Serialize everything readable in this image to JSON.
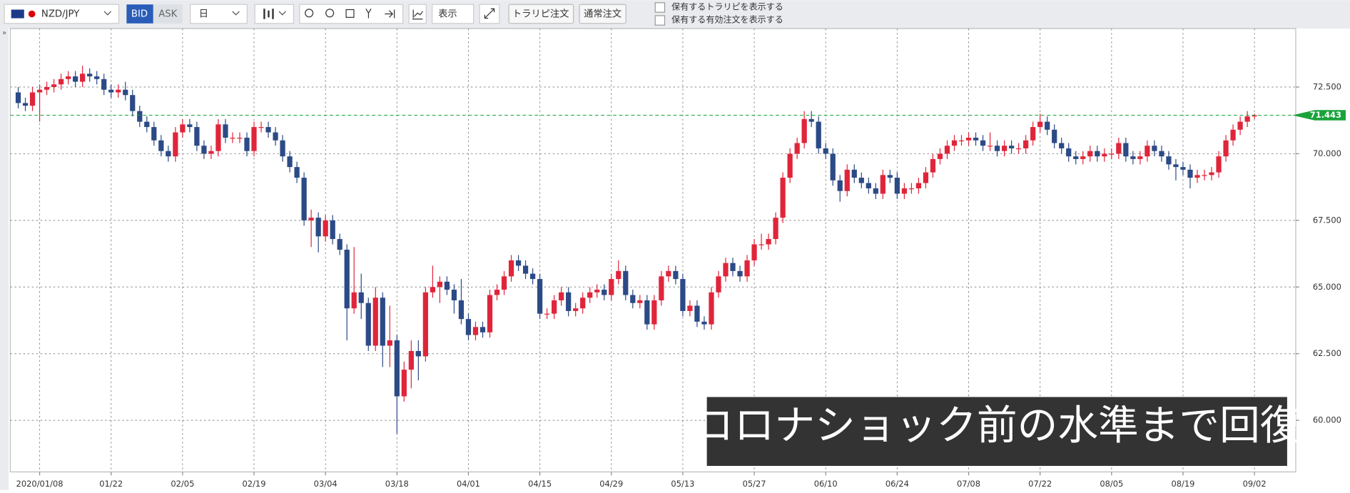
{
  "toolbar": {
    "pair": "NZD/JPY",
    "bid": "BID",
    "ask": "ASK",
    "period": "日",
    "display": "表示",
    "trap_order": "トラリピ注文",
    "normal_order": "通常注文",
    "show_trap": "保有するトラリピを表示する",
    "show_orders": "保有する有効注文を表示する"
  },
  "chart_data": {
    "type": "candlestick",
    "annotation": "コロナショック前の水準まで回復",
    "categories": [
      null,
      null,
      null,
      "2020/01/08",
      null,
      null,
      null,
      null,
      null,
      null,
      null,
      null,
      null,
      "01/22",
      null,
      null,
      null,
      null,
      null,
      null,
      null,
      null,
      null,
      "02/05",
      null,
      null,
      null,
      null,
      null,
      null,
      null,
      null,
      null,
      "02/19",
      null,
      null,
      null,
      null,
      null,
      null,
      null,
      null,
      null,
      "03/04",
      null,
      null,
      null,
      null,
      null,
      null,
      null,
      null,
      null,
      "03/18",
      null,
      null,
      null,
      null,
      null,
      null,
      null,
      null,
      null,
      "04/01",
      null,
      null,
      null,
      null,
      null,
      null,
      null,
      null,
      null,
      "04/15",
      null,
      null,
      null,
      null,
      null,
      null,
      null,
      null,
      null,
      "04/29",
      null,
      null,
      null,
      null,
      null,
      null,
      null,
      null,
      null,
      "05/13",
      null,
      null,
      null,
      null,
      null,
      null,
      null,
      null,
      null,
      "05/27",
      null,
      null,
      null,
      null,
      null,
      null,
      null,
      null,
      null,
      "06/10",
      null,
      null,
      null,
      null,
      null,
      null,
      null,
      null,
      null,
      "06/24",
      null,
      null,
      null,
      null,
      null,
      null,
      null,
      null,
      null,
      "07/08",
      null,
      null,
      null,
      null,
      null,
      null,
      null,
      null,
      null,
      "07/22",
      null,
      null,
      null,
      null,
      null,
      null,
      null,
      null,
      null,
      "08/05",
      null,
      null,
      null,
      null,
      null,
      null,
      null,
      null,
      null,
      "08/19",
      null,
      null,
      null,
      null,
      null,
      null,
      null,
      null,
      null,
      "09/02"
    ],
    "open": [
      72.3,
      71.9,
      71.8,
      72.3,
      72.4,
      72.5,
      72.6,
      72.8,
      72.9,
      72.7,
      73.0,
      72.9,
      72.8,
      72.4,
      72.3,
      72.4,
      72.2,
      71.6,
      71.2,
      71.0,
      70.5,
      70.1,
      69.9,
      70.8,
      71.1,
      71.0,
      70.3,
      70.0,
      70.1,
      71.1,
      70.6,
      70.6,
      70.6,
      70.1,
      71.0,
      71.0,
      70.8,
      70.5,
      69.9,
      69.5,
      69.1,
      67.5,
      67.6,
      66.9,
      67.5,
      66.8,
      66.4,
      64.2,
      64.8,
      64.4,
      62.8,
      64.6,
      62.8,
      63.0,
      60.9,
      61.9,
      62.6,
      62.4,
      64.8,
      65.0,
      65.2,
      64.9,
      64.5,
      63.8,
      63.2,
      63.5,
      63.3,
      64.7,
      64.9,
      65.4,
      66.0,
      65.8,
      65.5,
      65.3,
      64.0,
      64.0,
      64.5,
      64.8,
      64.1,
      64.2,
      64.6,
      64.8,
      64.9,
      64.7,
      65.3,
      65.6,
      64.7,
      64.4,
      64.5,
      63.6,
      64.5,
      65.4,
      65.6,
      65.3,
      64.1,
      64.3,
      63.7,
      63.6,
      64.8,
      65.4,
      65.9,
      65.6,
      65.4,
      66.0,
      66.6,
      66.6,
      66.8,
      67.6,
      69.1,
      70.0,
      70.4,
      71.3,
      71.2,
      70.2,
      70.0,
      69.0,
      68.6,
      69.4,
      69.1,
      68.9,
      68.7,
      68.5,
      69.2,
      69.1,
      68.5,
      68.7,
      68.7,
      68.9,
      69.3,
      69.8,
      70.0,
      70.3,
      70.5,
      70.5,
      70.6,
      70.5,
      70.3,
      70.3,
      70.1,
      70.3,
      70.2,
      70.2,
      70.5,
      71.0,
      71.2,
      70.9,
      70.4,
      70.2,
      69.9,
      69.8,
      69.9,
      70.1,
      69.9,
      70.0,
      70.0,
      70.4,
      69.9,
      69.8,
      69.9,
      70.3,
      70.1,
      69.9,
      69.6,
      69.5,
      69.4,
      69.1,
      69.2,
      69.2,
      69.3,
      69.9,
      70.5,
      70.9,
      71.2,
      71.4
    ],
    "high": [
      72.5,
      72.1,
      72.5,
      72.6,
      72.7,
      72.8,
      73.0,
      73.1,
      73.1,
      73.3,
      73.2,
      73.1,
      73.0,
      72.6,
      72.6,
      72.7,
      72.4,
      71.8,
      71.4,
      71.2,
      70.7,
      70.3,
      71.0,
      71.3,
      71.3,
      71.2,
      70.5,
      70.3,
      71.3,
      71.3,
      70.8,
      70.8,
      70.8,
      71.2,
      71.2,
      71.2,
      71.0,
      70.7,
      70.1,
      69.7,
      69.3,
      67.9,
      67.8,
      67.7,
      67.7,
      67.0,
      66.6,
      66.5,
      65.5,
      64.6,
      65.0,
      64.8,
      64.3,
      63.2,
      62.2,
      63.0,
      63.0,
      65.0,
      65.8,
      65.4,
      65.4,
      65.1,
      65.3,
      64.0,
      63.7,
      63.7,
      64.9,
      65.1,
      65.6,
      66.2,
      66.2,
      66.0,
      65.7,
      65.5,
      64.2,
      64.7,
      65.0,
      65.0,
      64.4,
      64.8,
      65.0,
      65.1,
      65.1,
      65.5,
      66.0,
      65.8,
      64.9,
      64.7,
      64.7,
      64.7,
      65.6,
      65.8,
      65.8,
      65.5,
      64.5,
      64.5,
      63.9,
      65.0,
      65.6,
      66.1,
      66.1,
      65.8,
      66.2,
      66.8,
      67.0,
      67.0,
      67.8,
      69.3,
      70.2,
      70.6,
      71.6,
      71.6,
      71.4,
      70.4,
      70.2,
      69.2,
      69.6,
      69.6,
      69.3,
      69.1,
      68.9,
      69.4,
      69.4,
      69.3,
      68.9,
      68.9,
      69.1,
      69.5,
      70.0,
      70.2,
      70.5,
      70.7,
      70.7,
      70.8,
      70.8,
      70.7,
      70.8,
      70.5,
      70.5,
      70.5,
      70.4,
      70.7,
      71.2,
      71.5,
      71.4,
      71.1,
      70.6,
      70.4,
      70.1,
      70.1,
      70.3,
      70.3,
      70.2,
      70.2,
      70.6,
      70.6,
      70.1,
      70.1,
      70.5,
      70.5,
      70.3,
      70.1,
      69.8,
      69.7,
      69.6,
      69.4,
      69.4,
      69.5,
      70.1,
      70.7,
      71.1,
      71.4,
      71.6,
      71.5
    ],
    "low": [
      71.7,
      71.6,
      71.6,
      71.2,
      72.2,
      72.3,
      72.4,
      72.6,
      72.5,
      72.5,
      72.7,
      72.6,
      72.2,
      72.1,
      72.1,
      72.0,
      71.4,
      71.0,
      70.8,
      70.3,
      69.9,
      69.7,
      69.7,
      70.6,
      70.8,
      70.1,
      69.8,
      69.8,
      69.9,
      70.4,
      70.4,
      70.4,
      69.9,
      69.9,
      70.8,
      70.6,
      70.3,
      69.7,
      69.3,
      68.9,
      67.3,
      66.5,
      66.3,
      66.7,
      66.6,
      66.2,
      63.0,
      64.0,
      63.8,
      62.6,
      62.6,
      62.0,
      62.0,
      59.5,
      60.7,
      61.2,
      61.5,
      62.2,
      64.6,
      64.4,
      64.7,
      64.0,
      63.6,
      63.0,
      63.0,
      63.1,
      63.1,
      64.5,
      64.7,
      65.2,
      65.6,
      65.3,
      65.1,
      63.8,
      63.8,
      63.8,
      64.3,
      63.9,
      63.9,
      64.0,
      64.4,
      64.6,
      64.5,
      64.5,
      65.1,
      64.5,
      64.2,
      64.2,
      63.4,
      63.4,
      64.3,
      65.2,
      65.1,
      63.9,
      63.9,
      63.5,
      63.4,
      63.4,
      64.6,
      65.2,
      65.4,
      65.2,
      65.2,
      65.8,
      66.4,
      66.4,
      66.6,
      67.4,
      68.9,
      69.8,
      70.2,
      71.0,
      70.0,
      69.8,
      68.8,
      68.2,
      68.4,
      68.9,
      68.7,
      68.5,
      68.3,
      68.3,
      68.9,
      68.3,
      68.3,
      68.5,
      68.5,
      68.7,
      69.1,
      69.6,
      69.8,
      70.1,
      70.3,
      70.3,
      70.3,
      70.1,
      70.1,
      69.9,
      69.9,
      70.0,
      70.0,
      70.0,
      70.3,
      70.8,
      70.7,
      70.2,
      70.0,
      69.7,
      69.6,
      69.6,
      69.7,
      69.7,
      69.7,
      69.8,
      69.8,
      69.7,
      69.6,
      69.6,
      69.7,
      69.9,
      69.7,
      69.4,
      69.0,
      69.2,
      68.7,
      68.9,
      69.0,
      69.0,
      69.1,
      69.7,
      70.3,
      70.7,
      71.0,
      71.3
    ],
    "close": [
      71.9,
      71.8,
      72.3,
      72.4,
      72.5,
      72.6,
      72.8,
      72.9,
      72.7,
      73.0,
      72.9,
      72.8,
      72.4,
      72.3,
      72.4,
      72.2,
      71.6,
      71.2,
      71.0,
      70.5,
      70.1,
      69.9,
      70.8,
      71.1,
      71.0,
      70.3,
      70.0,
      70.1,
      71.1,
      70.6,
      70.6,
      70.6,
      70.1,
      71.0,
      71.0,
      70.8,
      70.5,
      69.9,
      69.5,
      69.1,
      67.5,
      67.6,
      66.9,
      67.5,
      66.8,
      66.4,
      64.2,
      64.8,
      64.4,
      62.8,
      64.6,
      62.8,
      63.0,
      60.9,
      61.9,
      62.6,
      62.4,
      64.8,
      65.0,
      65.2,
      64.9,
      64.5,
      63.8,
      63.2,
      63.5,
      63.3,
      64.7,
      64.9,
      65.4,
      66.0,
      65.8,
      65.5,
      65.3,
      64.0,
      64.0,
      64.5,
      64.8,
      64.1,
      64.2,
      64.6,
      64.8,
      64.9,
      64.7,
      65.3,
      65.6,
      64.7,
      64.4,
      64.5,
      63.6,
      64.5,
      65.4,
      65.6,
      65.3,
      64.1,
      64.3,
      63.7,
      63.6,
      64.8,
      65.4,
      65.9,
      65.6,
      65.4,
      66.0,
      66.6,
      66.6,
      66.8,
      67.6,
      69.1,
      70.0,
      70.4,
      71.3,
      71.2,
      70.2,
      70.0,
      69.0,
      68.6,
      69.4,
      69.1,
      68.9,
      68.7,
      68.5,
      69.2,
      69.1,
      68.5,
      68.7,
      68.7,
      68.9,
      69.3,
      69.8,
      70.0,
      70.3,
      70.5,
      70.5,
      70.6,
      70.5,
      70.3,
      70.3,
      70.1,
      70.3,
      70.2,
      70.2,
      70.5,
      71.0,
      71.2,
      70.9,
      70.4,
      70.2,
      69.9,
      69.8,
      69.9,
      70.1,
      69.9,
      70.0,
      70.0,
      70.4,
      69.9,
      69.8,
      69.9,
      70.3,
      70.1,
      69.9,
      69.6,
      69.5,
      69.4,
      69.1,
      69.2,
      69.2,
      69.3,
      69.9,
      70.5,
      70.9,
      71.2,
      71.4,
      71.44
    ],
    "up_color": "#e0253a",
    "down_color": "#2b4a86",
    "current_price": 71.443,
    "current_price_color": "#1aa33a",
    "ylim": [
      58.065,
      74.694
    ],
    "yticks": [
      {
        "value": 60,
        "label": "60.000"
      },
      {
        "value": 62.5,
        "label": "62.500"
      },
      {
        "value": 65,
        "label": "65.000"
      },
      {
        "value": 67.5,
        "label": "67.500"
      },
      {
        "value": 70,
        "label": "70.000"
      },
      {
        "value": 72.5,
        "label": "72.500"
      }
    ],
    "grid": true
  }
}
